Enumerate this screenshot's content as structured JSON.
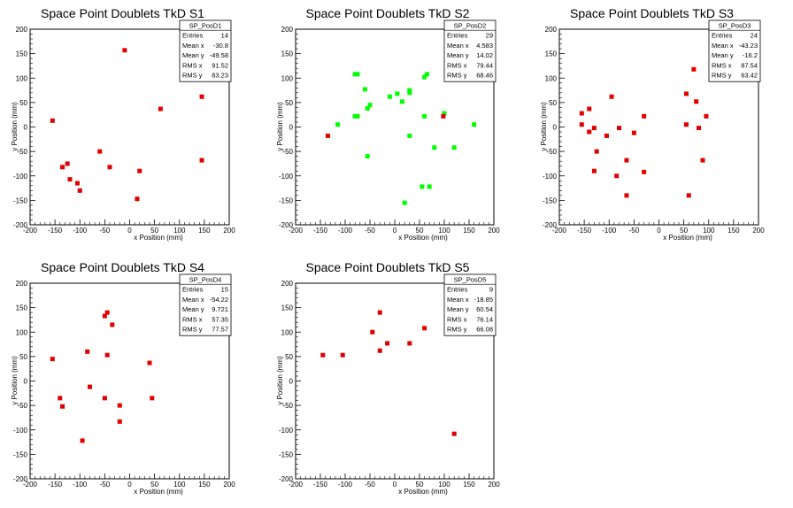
{
  "chart_data": [
    {
      "type": "scatter",
      "title": "Space Point Doublets TkD S1",
      "xlabel": "x Position (mm)",
      "ylabel": "y Position (mm)",
      "xlim": [
        -200,
        200
      ],
      "ylim": [
        -200,
        200
      ],
      "ticks": [
        "-200",
        "-150",
        "-100",
        "-50",
        "0",
        "50",
        "100",
        "150",
        "200"
      ],
      "marker_color": "#e00000",
      "stats": {
        "name": "SP_PosD1",
        "rows": [
          [
            "Entries",
            "14"
          ],
          [
            "Mean x",
            "-30.8"
          ],
          [
            "Mean y",
            "-49.58"
          ],
          [
            "RMS x",
            "91.52"
          ],
          [
            "RMS y",
            "83.23"
          ]
        ]
      },
      "points": [
        [
          -10,
          157
        ],
        [
          -155,
          13
        ],
        [
          -125,
          -75
        ],
        [
          -135,
          -82
        ],
        [
          -120,
          -107
        ],
        [
          -105,
          -115
        ],
        [
          -100,
          -130
        ],
        [
          -60,
          -50
        ],
        [
          -40,
          -82
        ],
        [
          20,
          -90
        ],
        [
          15,
          -147
        ],
        [
          62,
          37
        ],
        [
          145,
          62
        ],
        [
          145,
          -68
        ]
      ]
    },
    {
      "type": "scatter",
      "title": "Space Point Doublets TkD S2",
      "xlabel": "x Position (mm)",
      "ylabel": "y Position (mm)",
      "xlim": [
        -200,
        200
      ],
      "ylim": [
        -200,
        200
      ],
      "ticks": [
        "-200",
        "-150",
        "-100",
        "-50",
        "0",
        "50",
        "100",
        "150",
        "200"
      ],
      "marker_color": "#00ff00",
      "stats": {
        "name": "SP_PosD2",
        "rows": [
          [
            "Entries",
            "29"
          ],
          [
            "Mean x",
            "4.583"
          ],
          [
            "Mean y",
            "14.02"
          ],
          [
            "RMS x",
            "79.44"
          ],
          [
            "RMS y",
            "68.46"
          ]
        ]
      },
      "points": [
        [
          -80,
          108
        ],
        [
          -75,
          108
        ],
        [
          -60,
          77
        ],
        [
          -80,
          22
        ],
        [
          -75,
          22
        ],
        [
          -115,
          5
        ],
        [
          -50,
          45
        ],
        [
          -55,
          38
        ],
        [
          -10,
          62
        ],
        [
          5,
          68
        ],
        [
          15,
          52
        ],
        [
          30,
          75
        ],
        [
          30,
          70
        ],
        [
          65,
          108
        ],
        [
          60,
          102
        ],
        [
          60,
          22
        ],
        [
          100,
          28
        ],
        [
          160,
          5
        ],
        [
          -55,
          -60
        ],
        [
          30,
          -18
        ],
        [
          80,
          -42
        ],
        [
          120,
          -42
        ],
        [
          20,
          -155
        ],
        [
          55,
          -122
        ],
        [
          70,
          -122
        ]
      ],
      "extra_points": [
        [
          -135,
          -18
        ],
        [
          98,
          22
        ]
      ],
      "extra_color": "#e00000"
    },
    {
      "type": "scatter",
      "title": "Space Point Doublets TkD S3",
      "xlabel": "x Position (mm)",
      "ylabel": "y Position (mm)",
      "xlim": [
        -200,
        200
      ],
      "ylim": [
        -200,
        200
      ],
      "ticks": [
        "-200",
        "-150",
        "-100",
        "-50",
        "0",
        "50",
        "100",
        "150",
        "200"
      ],
      "marker_color": "#e00000",
      "stats": {
        "name": "SP_PosD3",
        "rows": [
          [
            "Entries",
            "24"
          ],
          [
            "Mean x",
            "-43.23"
          ],
          [
            "Mean y",
            "-16.2"
          ],
          [
            "RMS x",
            "87.54"
          ],
          [
            "RMS y",
            "63.42"
          ]
        ]
      },
      "points": [
        [
          -155,
          28
        ],
        [
          -155,
          5
        ],
        [
          -140,
          37
        ],
        [
          -140,
          -10
        ],
        [
          -130,
          -2
        ],
        [
          -125,
          -50
        ],
        [
          -130,
          -90
        ],
        [
          -105,
          -18
        ],
        [
          -95,
          62
        ],
        [
          -85,
          -100
        ],
        [
          -80,
          -2
        ],
        [
          -65,
          -68
        ],
        [
          -65,
          -140
        ],
        [
          -50,
          -12
        ],
        [
          -30,
          22
        ],
        [
          -30,
          -92
        ],
        [
          55,
          68
        ],
        [
          55,
          5
        ],
        [
          70,
          118
        ],
        [
          75,
          52
        ],
        [
          80,
          -2
        ],
        [
          88,
          -68
        ],
        [
          95,
          22
        ],
        [
          60,
          -140
        ]
      ]
    },
    {
      "type": "scatter",
      "title": "Space Point Doublets TkD S4",
      "xlabel": "x Position (mm)",
      "ylabel": "y Position (mm)",
      "xlim": [
        -200,
        200
      ],
      "ylim": [
        -200,
        200
      ],
      "ticks": [
        "-200",
        "-150",
        "-100",
        "-50",
        "0",
        "50",
        "100",
        "150",
        "200"
      ],
      "marker_color": "#e00000",
      "stats": {
        "name": "SP_PosD4",
        "rows": [
          [
            "Entries",
            "15"
          ],
          [
            "Mean x",
            "-54.22"
          ],
          [
            "Mean y",
            "9.721"
          ],
          [
            "RMS x",
            "57.35"
          ],
          [
            "RMS y",
            "77.57"
          ]
        ]
      },
      "points": [
        [
          -155,
          45
        ],
        [
          -140,
          -35
        ],
        [
          -135,
          -52
        ],
        [
          -85,
          60
        ],
        [
          -80,
          -12
        ],
        [
          -50,
          133
        ],
        [
          -45,
          140
        ],
        [
          -35,
          115
        ],
        [
          -45,
          53
        ],
        [
          -50,
          -35
        ],
        [
          -20,
          -50
        ],
        [
          -20,
          -83
        ],
        [
          40,
          37
        ],
        [
          45,
          -35
        ],
        [
          -95,
          -122
        ]
      ]
    },
    {
      "type": "scatter",
      "title": "Space Point Doublets TkD S5",
      "xlabel": "x Position (mm)",
      "ylabel": "y Position (mm)",
      "xlim": [
        -200,
        200
      ],
      "ylim": [
        -200,
        200
      ],
      "ticks": [
        "-200",
        "-150",
        "-100",
        "-50",
        "0",
        "50",
        "100",
        "150",
        "200"
      ],
      "marker_color": "#e00000",
      "stats": {
        "name": "SP_PosD5",
        "rows": [
          [
            "Entries",
            "9"
          ],
          [
            "Mean x",
            "-18.85"
          ],
          [
            "Mean y",
            "60.54"
          ],
          [
            "RMS x",
            "76.14"
          ],
          [
            "RMS y",
            "66.08"
          ]
        ]
      },
      "points": [
        [
          -145,
          53
        ],
        [
          -105,
          53
        ],
        [
          -45,
          100
        ],
        [
          -30,
          140
        ],
        [
          -30,
          62
        ],
        [
          -15,
          77
        ],
        [
          30,
          77
        ],
        [
          60,
          108
        ],
        [
          120,
          -108
        ]
      ]
    }
  ]
}
